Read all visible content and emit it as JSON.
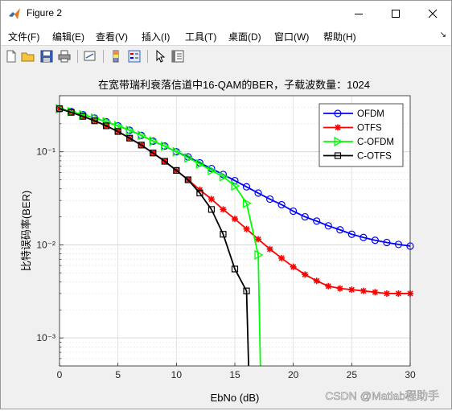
{
  "window": {
    "title": "Figure 2"
  },
  "menu": [
    "文件(F)",
    "编辑(E)",
    "查看(V)",
    "插入(I)",
    "工具(T)",
    "桌面(D)",
    "窗口(W)",
    "帮助(H)"
  ],
  "toolbar": [
    "new-figure-icon",
    "open-file-icon",
    "save-icon",
    "print-icon",
    "link-plot-icon",
    "colorbar-icon",
    "legend-icon",
    "pointer-icon",
    "property-editor-icon"
  ],
  "watermark": "CSDN @Matlab程助手",
  "colors": {
    "ofdm": "#0000ff",
    "otfs": "#ff0000",
    "cofdm": "#00ff00",
    "cotfs": "#000000"
  },
  "chart_data": {
    "type": "line",
    "title": "在宽带瑞利衰落信道中16-QAM的BER，子载波数量：1024",
    "xlabel": "EbNo (dB)",
    "ylabel": "比特误码率(BER)",
    "xlim": [
      0,
      30
    ],
    "ylim": [
      0.0005,
      0.4
    ],
    "yscale": "log",
    "grid": true,
    "xticks": [
      0,
      5,
      10,
      15,
      20,
      25,
      30
    ],
    "xtick_labels": [
      "0",
      "5",
      "10",
      "15",
      "20",
      "25",
      "30"
    ],
    "yticks": [
      0.001,
      0.01,
      0.1
    ],
    "ytick_labels": [
      "10⁻³",
      "10⁻²",
      "10⁻¹"
    ],
    "legend_position": "top-right",
    "series": [
      {
        "name": "OFDM",
        "color": "#0000ff",
        "marker": "circle",
        "x": [
          0,
          1,
          2,
          3,
          4,
          5,
          6,
          7,
          8,
          9,
          10,
          11,
          12,
          13,
          14,
          15,
          16,
          17,
          18,
          19,
          20,
          21,
          22,
          23,
          24,
          25,
          26,
          27,
          28,
          29,
          30
        ],
        "y": [
          0.29,
          0.27,
          0.25,
          0.23,
          0.21,
          0.19,
          0.17,
          0.15,
          0.13,
          0.115,
          0.1,
          0.088,
          0.076,
          0.066,
          0.057,
          0.049,
          0.042,
          0.036,
          0.031,
          0.027,
          0.023,
          0.02,
          0.018,
          0.016,
          0.0145,
          0.013,
          0.012,
          0.0112,
          0.0106,
          0.0101,
          0.0097
        ]
      },
      {
        "name": "OTFS",
        "color": "#ff0000",
        "marker": "star",
        "x": [
          0,
          1,
          2,
          3,
          4,
          5,
          6,
          7,
          8,
          9,
          10,
          11,
          12,
          13,
          14,
          15,
          16,
          17,
          18,
          19,
          20,
          21,
          22,
          23,
          24,
          25,
          26,
          27,
          28,
          29,
          30
        ],
        "y": [
          0.29,
          0.265,
          0.24,
          0.215,
          0.19,
          0.165,
          0.14,
          0.118,
          0.097,
          0.079,
          0.063,
          0.05,
          0.039,
          0.031,
          0.024,
          0.019,
          0.0148,
          0.0115,
          0.009,
          0.0072,
          0.0058,
          0.0048,
          0.0041,
          0.0036,
          0.0034,
          0.0033,
          0.0032,
          0.0031,
          0.003,
          0.003,
          0.003
        ]
      },
      {
        "name": "C-OFDM",
        "color": "#00ff00",
        "marker": "triangle-right",
        "x": [
          0,
          1,
          2,
          3,
          4,
          5,
          6,
          7,
          8,
          9,
          10,
          11,
          12,
          13,
          14,
          15,
          16,
          17,
          17.2
        ],
        "y": [
          0.29,
          0.27,
          0.25,
          0.23,
          0.21,
          0.19,
          0.17,
          0.15,
          0.13,
          0.115,
          0.1,
          0.086,
          0.074,
          0.063,
          0.054,
          0.043,
          0.028,
          0.0078,
          0.0004
        ]
      },
      {
        "name": "C-OTFS",
        "color": "#000000",
        "marker": "square",
        "x": [
          0,
          1,
          2,
          3,
          4,
          5,
          6,
          7,
          8,
          9,
          10,
          11,
          12,
          13,
          14,
          15,
          16,
          16.2
        ],
        "y": [
          0.29,
          0.265,
          0.24,
          0.215,
          0.19,
          0.165,
          0.14,
          0.118,
          0.097,
          0.079,
          0.063,
          0.05,
          0.036,
          0.024,
          0.013,
          0.0055,
          0.0032,
          0.0004
        ]
      }
    ]
  }
}
